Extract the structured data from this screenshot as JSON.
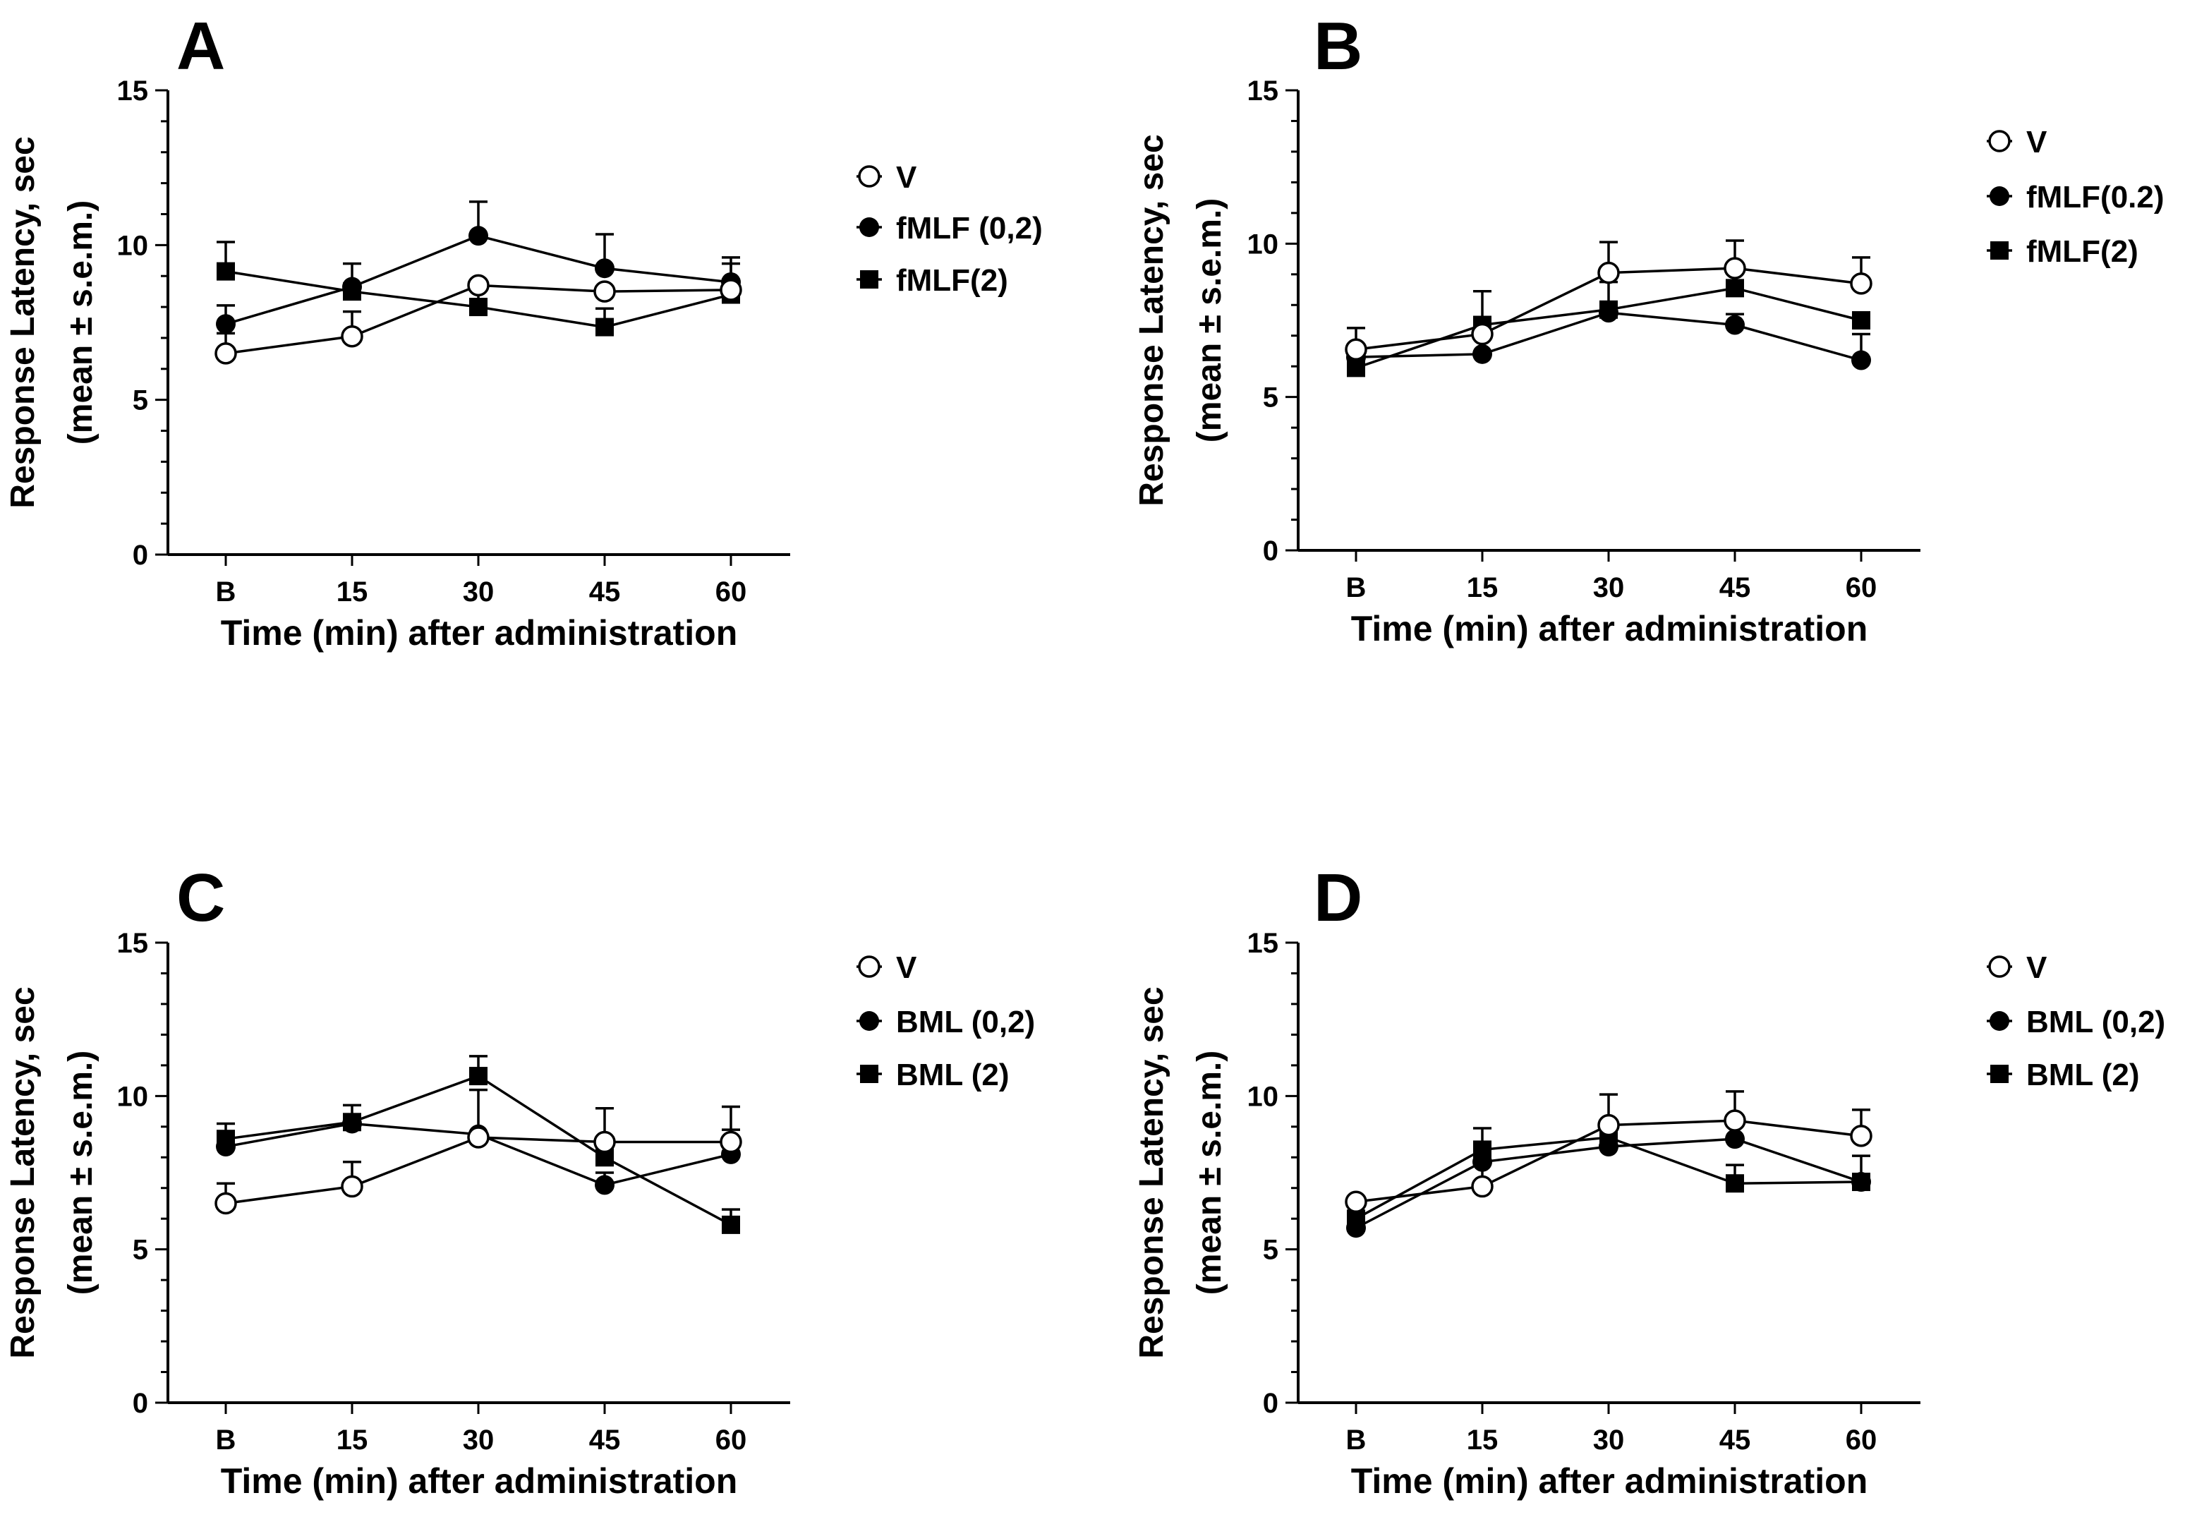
{
  "chart_data": [
    {
      "panel_label": "A",
      "type": "line",
      "categories": [
        "B",
        "15",
        "30",
        "45",
        "60"
      ],
      "xlabel": "Time (min) after administration",
      "ylabel": "Response Latency, sec",
      "ylabel2": "(mean ± s.e.m.)",
      "ylim": [
        0,
        15
      ],
      "yticks": [
        "0",
        "5",
        "10",
        "15"
      ],
      "series": [
        {
          "name": "V",
          "marker": "open-circle",
          "values": [
            6.5,
            7.05,
            8.7,
            8.5,
            8.55
          ],
          "errors": [
            0.65,
            0.8,
            0.0,
            0.0,
            0.0
          ]
        },
        {
          "name": "fMLF (0,2)",
          "marker": "filled-circle",
          "values": [
            7.45,
            8.65,
            10.3,
            9.25,
            8.8
          ],
          "errors": [
            0.6,
            0.75,
            1.1,
            1.1,
            0.6
          ]
        },
        {
          "name": "fMLF(2)",
          "marker": "filled-square",
          "values": [
            9.15,
            8.5,
            8.0,
            7.35,
            8.4
          ],
          "errors": [
            0.95,
            0.0,
            0.85,
            0.6,
            1.2
          ]
        }
      ]
    },
    {
      "panel_label": "B",
      "type": "line",
      "categories": [
        "B",
        "15",
        "30",
        "45",
        "60"
      ],
      "xlabel": "Time (min) after administration",
      "ylabel": "Response Latency, sec",
      "ylabel2": "(mean ± s.e.m.)",
      "ylim": [
        0,
        15
      ],
      "yticks": [
        "0",
        "5",
        "10",
        "15"
      ],
      "series": [
        {
          "name": "V",
          "marker": "open-circle",
          "values": [
            6.55,
            7.05,
            9.05,
            9.2,
            8.7
          ],
          "errors": [
            0.7,
            0.0,
            1.0,
            0.9,
            0.85
          ]
        },
        {
          "name": "fMLF(0.2)",
          "marker": "filled-circle",
          "values": [
            6.3,
            6.4,
            7.75,
            7.35,
            6.2
          ],
          "errors": [
            0.0,
            0.8,
            1.0,
            0.35,
            0.85
          ]
        },
        {
          "name": "fMLF(2)",
          "marker": "filled-square",
          "values": [
            5.95,
            7.35,
            7.85,
            8.55,
            7.5
          ],
          "errors": [
            0.55,
            1.1,
            0.0,
            0.0,
            0.0
          ]
        }
      ]
    },
    {
      "panel_label": "C",
      "type": "line",
      "categories": [
        "B",
        "15",
        "30",
        "45",
        "60"
      ],
      "xlabel": "Time (min) after administration",
      "ylabel": "Response Latency, sec",
      "ylabel2": "(mean ± s.e.m.)",
      "ylim": [
        0,
        15
      ],
      "yticks": [
        "0",
        "5",
        "10",
        "15"
      ],
      "series": [
        {
          "name": "V",
          "marker": "open-circle",
          "values": [
            6.5,
            7.05,
            8.65,
            8.5,
            8.5
          ],
          "errors": [
            0.65,
            0.8,
            1.55,
            1.1,
            1.15
          ]
        },
        {
          "name": "BML (0,2)",
          "marker": "filled-circle",
          "values": [
            8.35,
            9.1,
            8.75,
            7.1,
            8.1
          ],
          "errors": [
            0.3,
            0.0,
            0.0,
            0.4,
            0.8
          ]
        },
        {
          "name": "BML (2)",
          "marker": "filled-square",
          "values": [
            8.6,
            9.15,
            10.65,
            8.0,
            5.8
          ],
          "errors": [
            0.5,
            0.55,
            0.65,
            0.0,
            0.5
          ]
        }
      ]
    },
    {
      "panel_label": "D",
      "type": "line",
      "categories": [
        "B",
        "15",
        "30",
        "45",
        "60"
      ],
      "xlabel": "Time (min) after administration",
      "ylabel": "Response Latency, sec",
      "ylabel2": "(mean ± s.e.m.)",
      "ylim": [
        0,
        15
      ],
      "yticks": [
        "0",
        "5",
        "10",
        "15"
      ],
      "series": [
        {
          "name": "V",
          "marker": "open-circle",
          "values": [
            6.55,
            7.05,
            9.05,
            9.2,
            8.7
          ],
          "errors": [
            0.0,
            1.1,
            1.0,
            0.95,
            0.85
          ]
        },
        {
          "name": "BML (0,2)",
          "marker": "filled-circle",
          "values": [
            5.7,
            7.85,
            8.35,
            8.6,
            7.2
          ],
          "errors": [
            0.0,
            0.0,
            0.65,
            0.0,
            0.0
          ]
        },
        {
          "name": "BML (2)",
          "marker": "filled-square",
          "values": [
            6.0,
            8.25,
            8.65,
            7.15,
            7.2
          ],
          "errors": [
            0.0,
            0.7,
            0.0,
            0.6,
            0.85
          ]
        }
      ]
    }
  ]
}
